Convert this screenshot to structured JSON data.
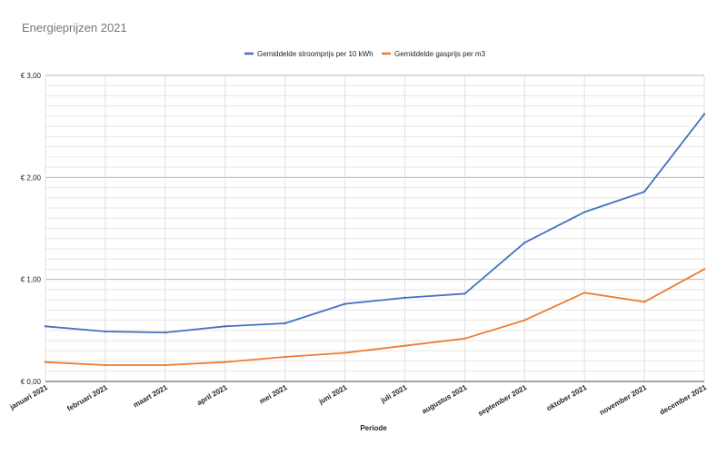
{
  "chart_data": {
    "type": "line",
    "title": "Energieprijzen 2021",
    "xlabel": "Periode",
    "ylabel": "",
    "ylim": [
      0,
      3
    ],
    "yticks": [
      "€ 0,00",
      "€ 1,00",
      "€ 2,00",
      "€ 3,00"
    ],
    "grid": true,
    "legend_position": "top",
    "categories": [
      "januari 2021",
      "februari 2021",
      "maart 2021",
      "april 2021",
      "mei 2021",
      "juni 2021",
      "juli 2021",
      "augustus 2021",
      "september 2021",
      "oktober 2021",
      "november 2021",
      "december 2021"
    ],
    "series": [
      {
        "name": "Gemiddelde stroomprijs per 10 kWh",
        "color": "#4472c4",
        "values": [
          0.54,
          0.49,
          0.48,
          0.54,
          0.57,
          0.76,
          0.82,
          0.86,
          1.36,
          1.66,
          1.86,
          2.62
        ]
      },
      {
        "name": "Gemiddelde gasprijs per m3",
        "color": "#ed7d31",
        "values": [
          0.19,
          0.16,
          0.16,
          0.19,
          0.24,
          0.28,
          0.35,
          0.42,
          0.6,
          0.87,
          0.78,
          1.1
        ]
      }
    ]
  }
}
